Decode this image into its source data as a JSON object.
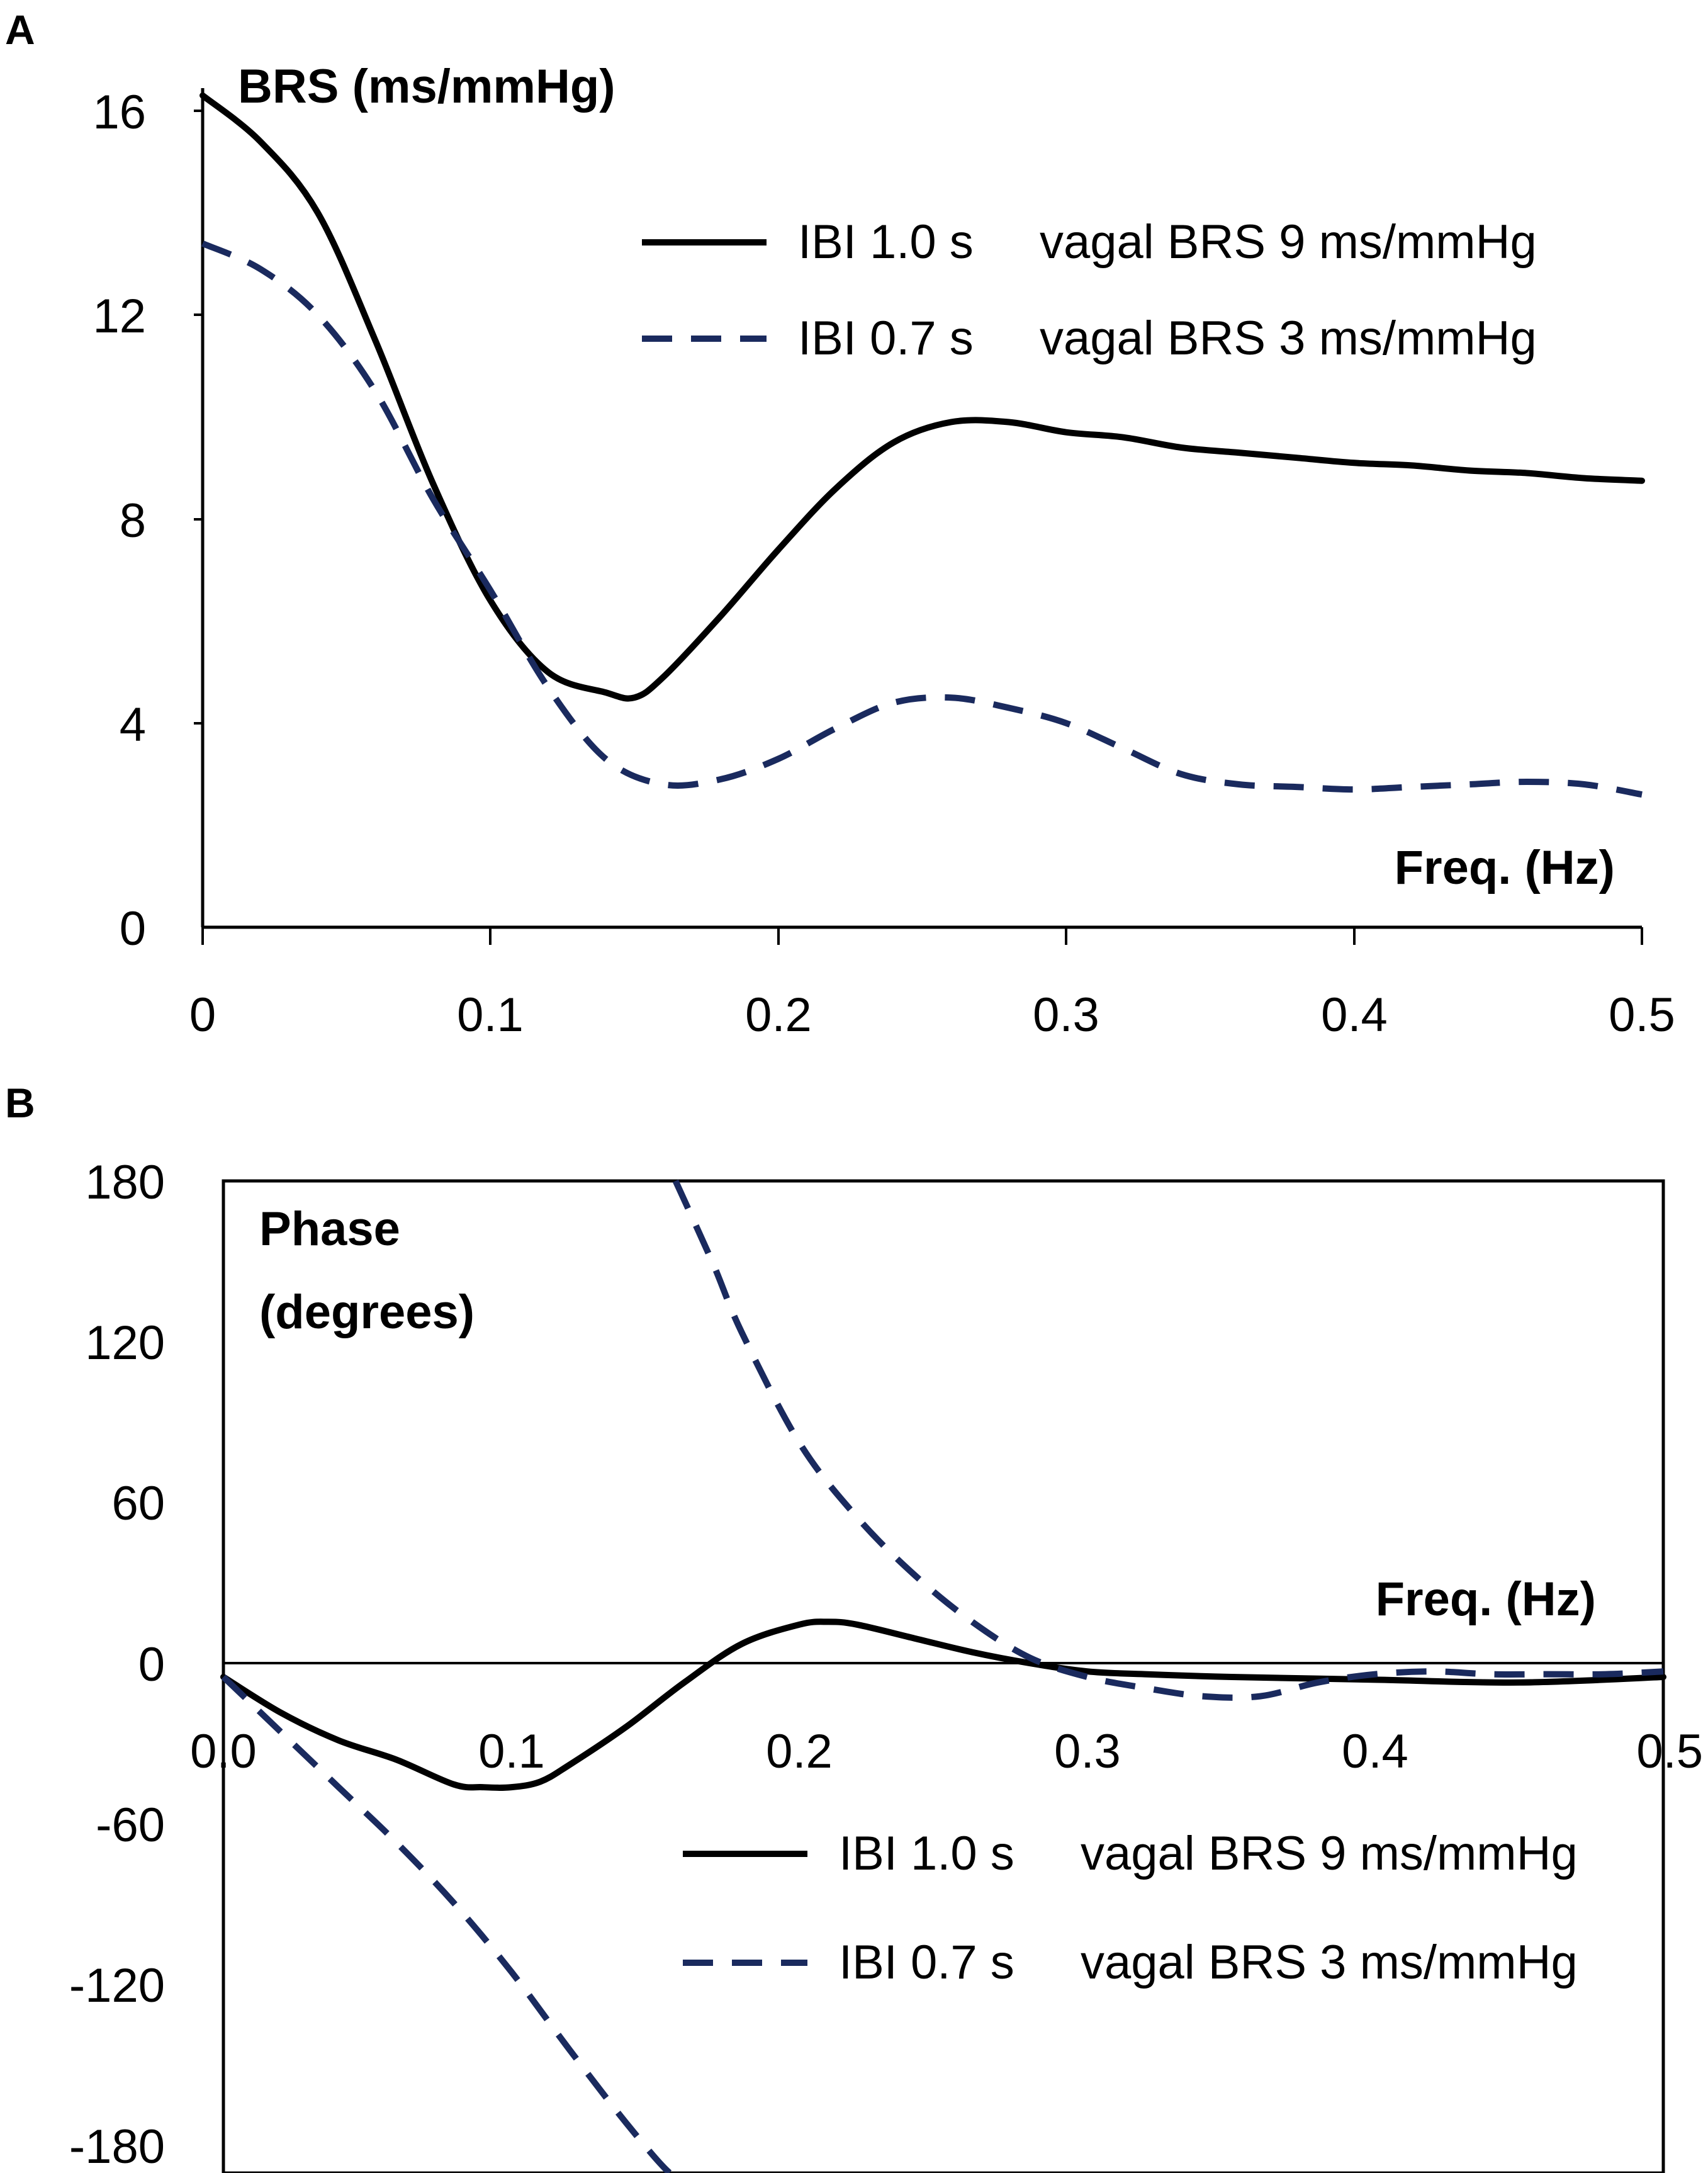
{
  "figure": {
    "colors": {
      "series_solid": "#000000",
      "series_dashed": "#1a2a5e",
      "axis": "#000000"
    }
  },
  "chart_data": [
    {
      "panel": "A",
      "type": "line",
      "ylabel": "BRS (ms/mmHg)",
      "xlabel": "Freq. (Hz)",
      "xlim": [
        0,
        0.5
      ],
      "ylim": [
        0,
        16
      ],
      "xticks": [
        0,
        0.1,
        0.2,
        0.3,
        0.4,
        0.5
      ],
      "xtick_labels": [
        "0",
        "0.1",
        "0.2",
        "0.3",
        "0.4",
        "0.5"
      ],
      "yticks": [
        0,
        4,
        8,
        12,
        16
      ],
      "ytick_labels": [
        "0",
        "4",
        "8",
        "12",
        "16"
      ],
      "legend": {
        "position": "top-right"
      },
      "series": [
        {
          "name": "IBI 1.0 s",
          "label_suffix": "vagal BRS 9 ms/mmHg",
          "style": "solid",
          "x": [
            0,
            0.02,
            0.04,
            0.06,
            0.08,
            0.1,
            0.12,
            0.14,
            0.15,
            0.16,
            0.18,
            0.2,
            0.22,
            0.24,
            0.26,
            0.28,
            0.3,
            0.32,
            0.34,
            0.36,
            0.38,
            0.4,
            0.42,
            0.44,
            0.46,
            0.48,
            0.5
          ],
          "y": [
            16.3,
            15.4,
            14.0,
            11.5,
            8.7,
            6.4,
            5.0,
            4.6,
            4.5,
            4.9,
            6.1,
            7.4,
            8.6,
            9.5,
            9.9,
            9.9,
            9.7,
            9.6,
            9.4,
            9.3,
            9.2,
            9.1,
            9.05,
            8.95,
            8.9,
            8.8,
            8.75
          ]
        },
        {
          "name": "IBI 0.7 s",
          "label_suffix": "vagal BRS 3 ms/mmHg",
          "style": "dashed",
          "x": [
            0,
            0.02,
            0.04,
            0.06,
            0.08,
            0.1,
            0.12,
            0.14,
            0.16,
            0.18,
            0.2,
            0.22,
            0.24,
            0.26,
            0.28,
            0.3,
            0.32,
            0.34,
            0.36,
            0.38,
            0.4,
            0.42,
            0.44,
            0.46,
            0.48,
            0.5
          ],
          "y": [
            13.4,
            12.9,
            12.0,
            10.5,
            8.4,
            6.6,
            4.7,
            3.3,
            2.8,
            2.9,
            3.3,
            3.9,
            4.4,
            4.5,
            4.3,
            4.0,
            3.5,
            3.0,
            2.8,
            2.75,
            2.7,
            2.75,
            2.8,
            2.85,
            2.8,
            2.6
          ]
        }
      ]
    },
    {
      "panel": "B",
      "type": "line",
      "ylabel_lines": [
        "Phase",
        "(degrees)"
      ],
      "xlabel": "Freq. (Hz)",
      "xlim": [
        0,
        0.5
      ],
      "ylim": [
        -180,
        180
      ],
      "xticks": [
        0,
        0.1,
        0.2,
        0.3,
        0.4,
        0.5
      ],
      "xtick_labels": [
        "0.0",
        "0.1",
        "0.2",
        "0.3",
        "0.4",
        "0.5"
      ],
      "yticks": [
        180,
        120,
        60,
        0,
        -60,
        -120,
        -180
      ],
      "ytick_labels": [
        "180",
        "120",
        "60",
        "0",
        "-60",
        "-120",
        "-180"
      ],
      "legend": {
        "position": "bottom-right"
      },
      "series": [
        {
          "name": "IBI 1.0 s",
          "label_suffix": "vagal BRS 9 ms/mmHg",
          "style": "solid",
          "x": [
            0,
            0.02,
            0.04,
            0.06,
            0.08,
            0.09,
            0.1,
            0.11,
            0.12,
            0.14,
            0.16,
            0.18,
            0.2,
            0.21,
            0.22,
            0.24,
            0.26,
            0.28,
            0.3,
            0.32,
            0.35,
            0.4,
            0.45,
            0.5
          ],
          "y": [
            0,
            -13,
            -23,
            -30,
            -39,
            -40,
            -40,
            -38,
            -32,
            -18,
            -2,
            12,
            19,
            20,
            19,
            14,
            9,
            5,
            2,
            1,
            0,
            -1,
            -2,
            0
          ]
        },
        {
          "name": "IBI 0.7 s",
          "label_suffix": "vagal BRS 3 ms/mmHg",
          "style": "dashed",
          "segments": [
            {
              "x": [
                0,
                0.02,
                0.04,
                0.06,
                0.08,
                0.1,
                0.12,
                0.14,
                0.155,
                0.16
              ],
              "y": [
                0,
                -20,
                -40,
                -60,
                -82,
                -107,
                -135,
                -162,
                -180,
                -180
              ]
            },
            {
              "x": [
                0.157,
                0.17,
                0.18,
                0.2,
                0.22,
                0.24,
                0.26,
                0.28,
                0.3,
                0.32,
                0.34,
                0.36,
                0.38,
                0.4,
                0.42,
                0.44,
                0.46,
                0.48,
                0.5
              ],
              "y": [
                180,
                150,
                125,
                85,
                58,
                37,
                20,
                7,
                0,
                -4,
                -7,
                -7,
                -2,
                1,
                2,
                1,
                1,
                1,
                2
              ]
            }
          ]
        }
      ]
    }
  ]
}
